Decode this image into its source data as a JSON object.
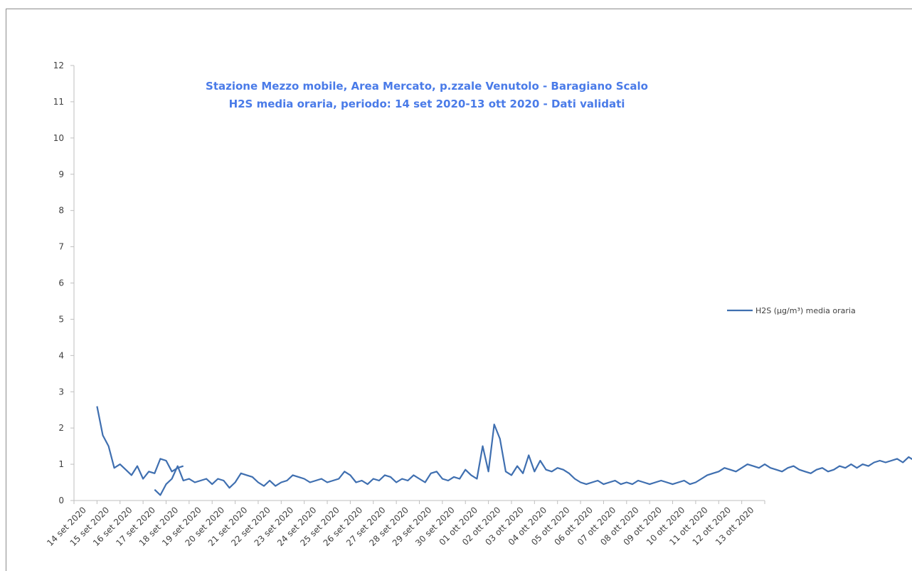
{
  "chart_data": {
    "type": "line",
    "title": [
      "Stazione Mezzo mobile, Area Mercato, p.zzale Venutolo - Baragiano Scalo",
      "H2S media oraria, periodo: 14 set 2020-13 ott 2020 - Dati validati"
    ],
    "xlabel": "",
    "ylabel": "",
    "ylim": [
      0,
      12
    ],
    "yticks": [
      "0",
      "1",
      "2",
      "3",
      "4",
      "5",
      "6",
      "7",
      "8",
      "9",
      "10",
      "11",
      "12"
    ],
    "categories": [
      "14 set 2020",
      "15 set 2020",
      "16 set 2020",
      "17 set 2020",
      "18 set 2020",
      "19 set 2020",
      "20 set 2020",
      "21 set 2020",
      "22 set 2020",
      "23 set 2020",
      "24 set 2020",
      "25 set 2020",
      "26 set 2020",
      "27 set 2020",
      "28 set 2020",
      "29 set 2020",
      "30 set 2020",
      "01 ott 2020",
      "02 ott 2020",
      "03 ott 2020",
      "04 ott 2020",
      "05 ott 2020",
      "06 ott 2020",
      "07 ott 2020",
      "08 ott 2020",
      "09 ott 2020",
      "10 ott 2020",
      "11 ott 2020",
      "12 ott 2020",
      "13 ott 2020"
    ],
    "grid": false,
    "legend_position": "right",
    "color": "#3f6fb0",
    "series": [
      {
        "name": "H2S (µg/m³) media oraria",
        "x_start": "14 set 2020",
        "x_step": "6 h",
        "segments": [
          {
            "start": "14 set 2020 12:00",
            "values": [
              2.6,
              1.8,
              1.5,
              0.9,
              1.0,
              0.85,
              0.7,
              0.95,
              0.6,
              0.8,
              0.75,
              1.15,
              1.1,
              0.8,
              0.9,
              0.95
            ]
          },
          {
            "start": "17 set 2020 00:00",
            "values": [
              0.3,
              0.15,
              0.45,
              0.6,
              0.95,
              0.55,
              0.6,
              0.5,
              0.55,
              0.6,
              0.45,
              0.6,
              0.55,
              0.35,
              0.5,
              0.75,
              0.7,
              0.65,
              0.5,
              0.4,
              0.55,
              0.4,
              0.5,
              0.55,
              0.7,
              0.65,
              0.6,
              0.5,
              0.55,
              0.6,
              0.5,
              0.55,
              0.6,
              0.8,
              0.7,
              0.5,
              0.55,
              0.45,
              0.6,
              0.55,
              0.7,
              0.65,
              0.5,
              0.6,
              0.55,
              0.7,
              0.6,
              0.5,
              0.75,
              0.8,
              0.6,
              0.55,
              0.65,
              0.6,
              0.85,
              0.7,
              0.6,
              1.5,
              0.8,
              2.1,
              1.7,
              0.8,
              0.7,
              0.95,
              0.75,
              1.25,
              0.8,
              1.1,
              0.85,
              0.8,
              0.9,
              0.85,
              0.75,
              0.6,
              0.5,
              0.45,
              0.5,
              0.55,
              0.45,
              0.5,
              0.55,
              0.45,
              0.5,
              0.45,
              0.55,
              0.5,
              0.45,
              0.5,
              0.55,
              0.5,
              0.45,
              0.5,
              0.55,
              0.45,
              0.5,
              0.6,
              0.7,
              0.75,
              0.8,
              0.9,
              0.85,
              0.8,
              0.9,
              1.0,
              0.95,
              0.9,
              1.0,
              0.9,
              0.85,
              0.8,
              0.9,
              0.95,
              0.85,
              0.8,
              0.75,
              0.85,
              0.9,
              0.8,
              0.85,
              0.95,
              0.9,
              1.0,
              0.9,
              1.0,
              0.95,
              1.05,
              1.1,
              1.05,
              1.1,
              1.15,
              1.05,
              1.2,
              1.1,
              1.0,
              0.9,
              0.85,
              0.95,
              0.9,
              0.85,
              1.0,
              0.95,
              0.8,
              1.05,
              1.0,
              1.1,
              0.95,
              1.4,
              1.1,
              1.0,
              0.95,
              0.9,
              0.95,
              0.9,
              0.95,
              1.0,
              0.95,
              0.9,
              0.85,
              0.9,
              0.85,
              0.9,
              0.95,
              0.9,
              0.95,
              1.0,
              0.9,
              1.05,
              1.1,
              1.0,
              1.05,
              1.1,
              1.0,
              1.15,
              1.1,
              1.05,
              1.1,
              1.05,
              1.1,
              1.15,
              1.1,
              1.05,
              1.2,
              1.15,
              1.0,
              1.1,
              1.05,
              1.25,
              1.15,
              1.1,
              1.15,
              1.05
            ]
          }
        ]
      }
    ]
  }
}
